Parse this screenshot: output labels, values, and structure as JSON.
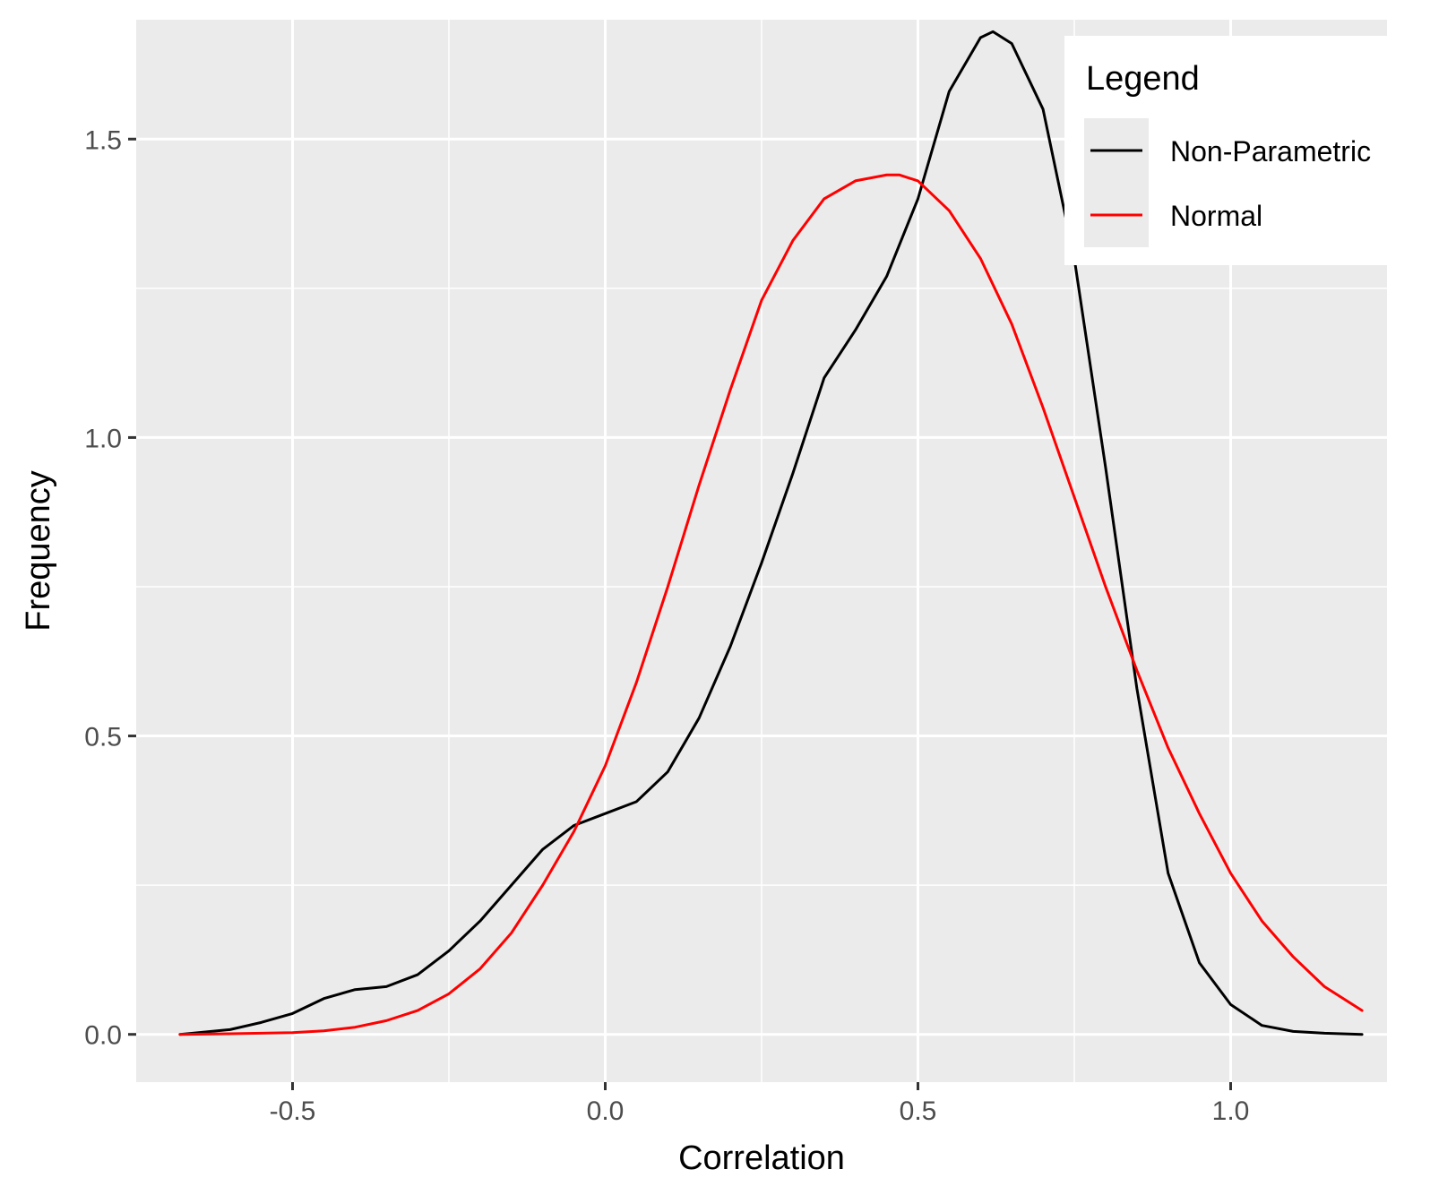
{
  "chart_data": {
    "type": "line",
    "title": "",
    "xlabel": "Correlation",
    "ylabel": "Frequency",
    "xlim": [
      -0.75,
      1.25
    ],
    "ylim": [
      -0.08,
      1.7
    ],
    "x_ticks": [
      -0.5,
      0.0,
      0.5,
      1.0
    ],
    "x_tick_labels": [
      "-0.5",
      "0.0",
      "0.5",
      "1.0"
    ],
    "y_ticks": [
      0.0,
      0.5,
      1.0,
      1.5
    ],
    "y_tick_labels": [
      "0.0",
      "0.5",
      "1.0",
      "1.5"
    ],
    "grid": true,
    "background": "#ebebeb",
    "legend": {
      "title": "Legend",
      "position": "top-right",
      "entries": [
        "Non-Parametric",
        "Normal"
      ]
    },
    "series": [
      {
        "name": "Non-Parametric",
        "color": "#000000",
        "x": [
          -0.68,
          -0.6,
          -0.55,
          -0.5,
          -0.45,
          -0.4,
          -0.35,
          -0.3,
          -0.25,
          -0.2,
          -0.15,
          -0.1,
          -0.05,
          0.0,
          0.05,
          0.1,
          0.15,
          0.2,
          0.25,
          0.3,
          0.35,
          0.4,
          0.45,
          0.5,
          0.55,
          0.6,
          0.62,
          0.65,
          0.7,
          0.75,
          0.8,
          0.85,
          0.9,
          0.95,
          1.0,
          1.05,
          1.1,
          1.15,
          1.21
        ],
        "y": [
          0.0,
          0.008,
          0.02,
          0.035,
          0.06,
          0.075,
          0.08,
          0.1,
          0.14,
          0.19,
          0.25,
          0.31,
          0.35,
          0.37,
          0.39,
          0.44,
          0.53,
          0.65,
          0.79,
          0.94,
          1.1,
          1.18,
          1.27,
          1.4,
          1.58,
          1.67,
          1.68,
          1.66,
          1.55,
          1.3,
          0.95,
          0.58,
          0.27,
          0.12,
          0.05,
          0.015,
          0.005,
          0.002,
          0.0
        ]
      },
      {
        "name": "Normal",
        "color": "#ff0000",
        "x": [
          -0.68,
          -0.6,
          -0.55,
          -0.5,
          -0.45,
          -0.4,
          -0.35,
          -0.3,
          -0.25,
          -0.2,
          -0.15,
          -0.1,
          -0.05,
          0.0,
          0.05,
          0.1,
          0.15,
          0.2,
          0.25,
          0.3,
          0.35,
          0.4,
          0.45,
          0.47,
          0.5,
          0.55,
          0.6,
          0.65,
          0.7,
          0.75,
          0.8,
          0.85,
          0.9,
          0.95,
          1.0,
          1.05,
          1.1,
          1.15,
          1.21
        ],
        "y": [
          0.0,
          0.001,
          0.002,
          0.003,
          0.006,
          0.012,
          0.023,
          0.04,
          0.068,
          0.11,
          0.17,
          0.25,
          0.34,
          0.45,
          0.59,
          0.75,
          0.92,
          1.08,
          1.23,
          1.33,
          1.4,
          1.43,
          1.44,
          1.44,
          1.43,
          1.38,
          1.3,
          1.19,
          1.05,
          0.9,
          0.75,
          0.61,
          0.48,
          0.37,
          0.27,
          0.19,
          0.13,
          0.08,
          0.04
        ]
      }
    ]
  }
}
